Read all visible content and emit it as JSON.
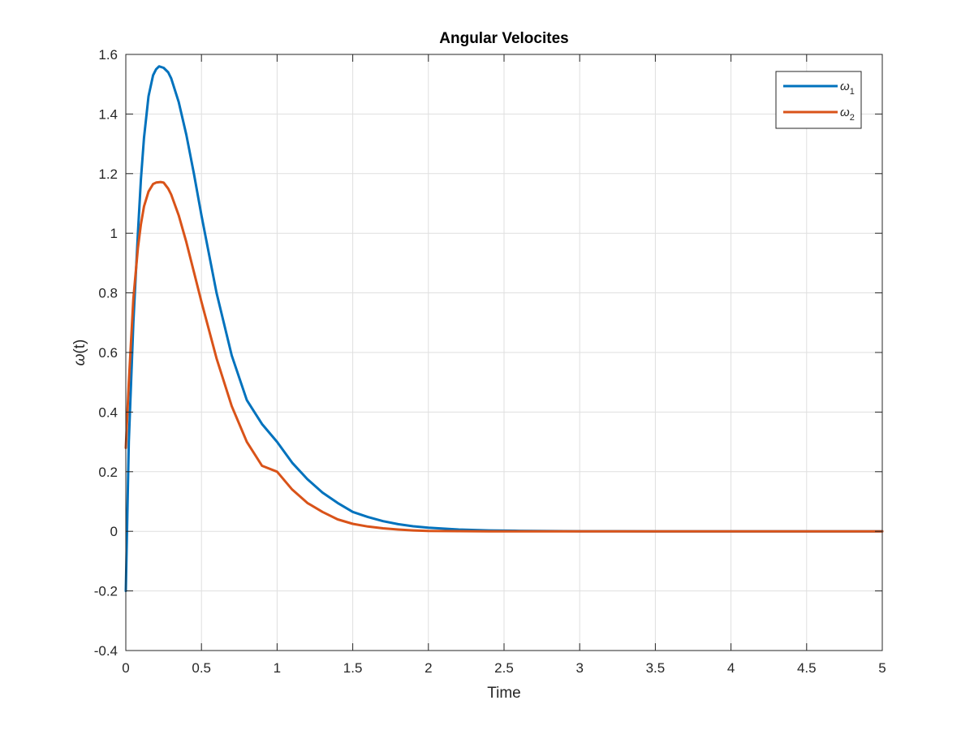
{
  "chart_data": {
    "type": "line",
    "title": "Angular Velocites",
    "xlabel": "Time",
    "ylabel_symbol": "ω",
    "ylabel_arg": "(t)",
    "xlim": [
      0,
      5
    ],
    "ylim": [
      -0.4,
      1.6
    ],
    "xticks": [
      0,
      0.5,
      1,
      1.5,
      2,
      2.5,
      3,
      3.5,
      4,
      4.5,
      5
    ],
    "xtick_labels": [
      "0",
      "0.5",
      "1",
      "1.5",
      "2",
      "2.5",
      "3",
      "3.5",
      "4",
      "4.5",
      "5"
    ],
    "yticks": [
      -0.4,
      -0.2,
      0,
      0.2,
      0.4,
      0.6,
      0.8,
      1,
      1.2,
      1.4,
      1.6
    ],
    "ytick_labels": [
      "-0.4",
      "-0.2",
      "0",
      "0.2",
      "0.4",
      "0.6",
      "0.8",
      "1",
      "1.2",
      "1.4",
      "1.6"
    ],
    "grid": true,
    "legend_position": "top-right",
    "series": [
      {
        "name": "ω",
        "subscript": "1",
        "color": "#0072BD",
        "x": [
          0,
          0.02,
          0.05,
          0.08,
          0.1,
          0.12,
          0.15,
          0.18,
          0.2,
          0.22,
          0.25,
          0.28,
          0.3,
          0.35,
          0.4,
          0.45,
          0.5,
          0.6,
          0.7,
          0.8,
          0.9,
          1.0,
          1.1,
          1.2,
          1.3,
          1.4,
          1.5,
          1.6,
          1.7,
          1.8,
          1.9,
          2.0,
          2.2,
          2.4,
          2.6,
          2.8,
          3.0,
          3.5,
          4.0,
          4.5,
          5.0
        ],
        "y": [
          -0.2,
          0.3,
          0.7,
          1.0,
          1.18,
          1.32,
          1.46,
          1.53,
          1.55,
          1.56,
          1.555,
          1.54,
          1.52,
          1.44,
          1.33,
          1.2,
          1.06,
          0.8,
          0.59,
          0.44,
          0.36,
          0.3,
          0.23,
          0.175,
          0.13,
          0.095,
          0.065,
          0.048,
          0.034,
          0.024,
          0.017,
          0.012,
          0.006,
          0.003,
          0.0015,
          0.0007,
          0.0003,
          0.0,
          0.0,
          0.0,
          0.0
        ]
      },
      {
        "name": "ω",
        "subscript": "2",
        "color": "#D95319",
        "x": [
          0,
          0.02,
          0.05,
          0.08,
          0.1,
          0.12,
          0.15,
          0.18,
          0.2,
          0.23,
          0.25,
          0.28,
          0.3,
          0.35,
          0.4,
          0.45,
          0.5,
          0.6,
          0.7,
          0.8,
          0.9,
          1.0,
          1.1,
          1.2,
          1.3,
          1.4,
          1.5,
          1.6,
          1.7,
          1.8,
          1.9,
          2.0,
          2.2,
          2.4,
          2.6,
          2.8,
          3.0,
          3.5,
          4.0,
          4.5,
          5.0
        ],
        "y": [
          0.28,
          0.5,
          0.78,
          0.95,
          1.03,
          1.09,
          1.14,
          1.165,
          1.17,
          1.172,
          1.17,
          1.15,
          1.13,
          1.06,
          0.97,
          0.87,
          0.77,
          0.58,
          0.42,
          0.3,
          0.22,
          0.2,
          0.14,
          0.095,
          0.065,
          0.04,
          0.025,
          0.016,
          0.01,
          0.006,
          0.003,
          0.001,
          0.0005,
          0.0,
          0.0,
          0.0,
          0.0,
          0.0,
          0.0,
          0.0,
          0.0
        ]
      }
    ]
  }
}
